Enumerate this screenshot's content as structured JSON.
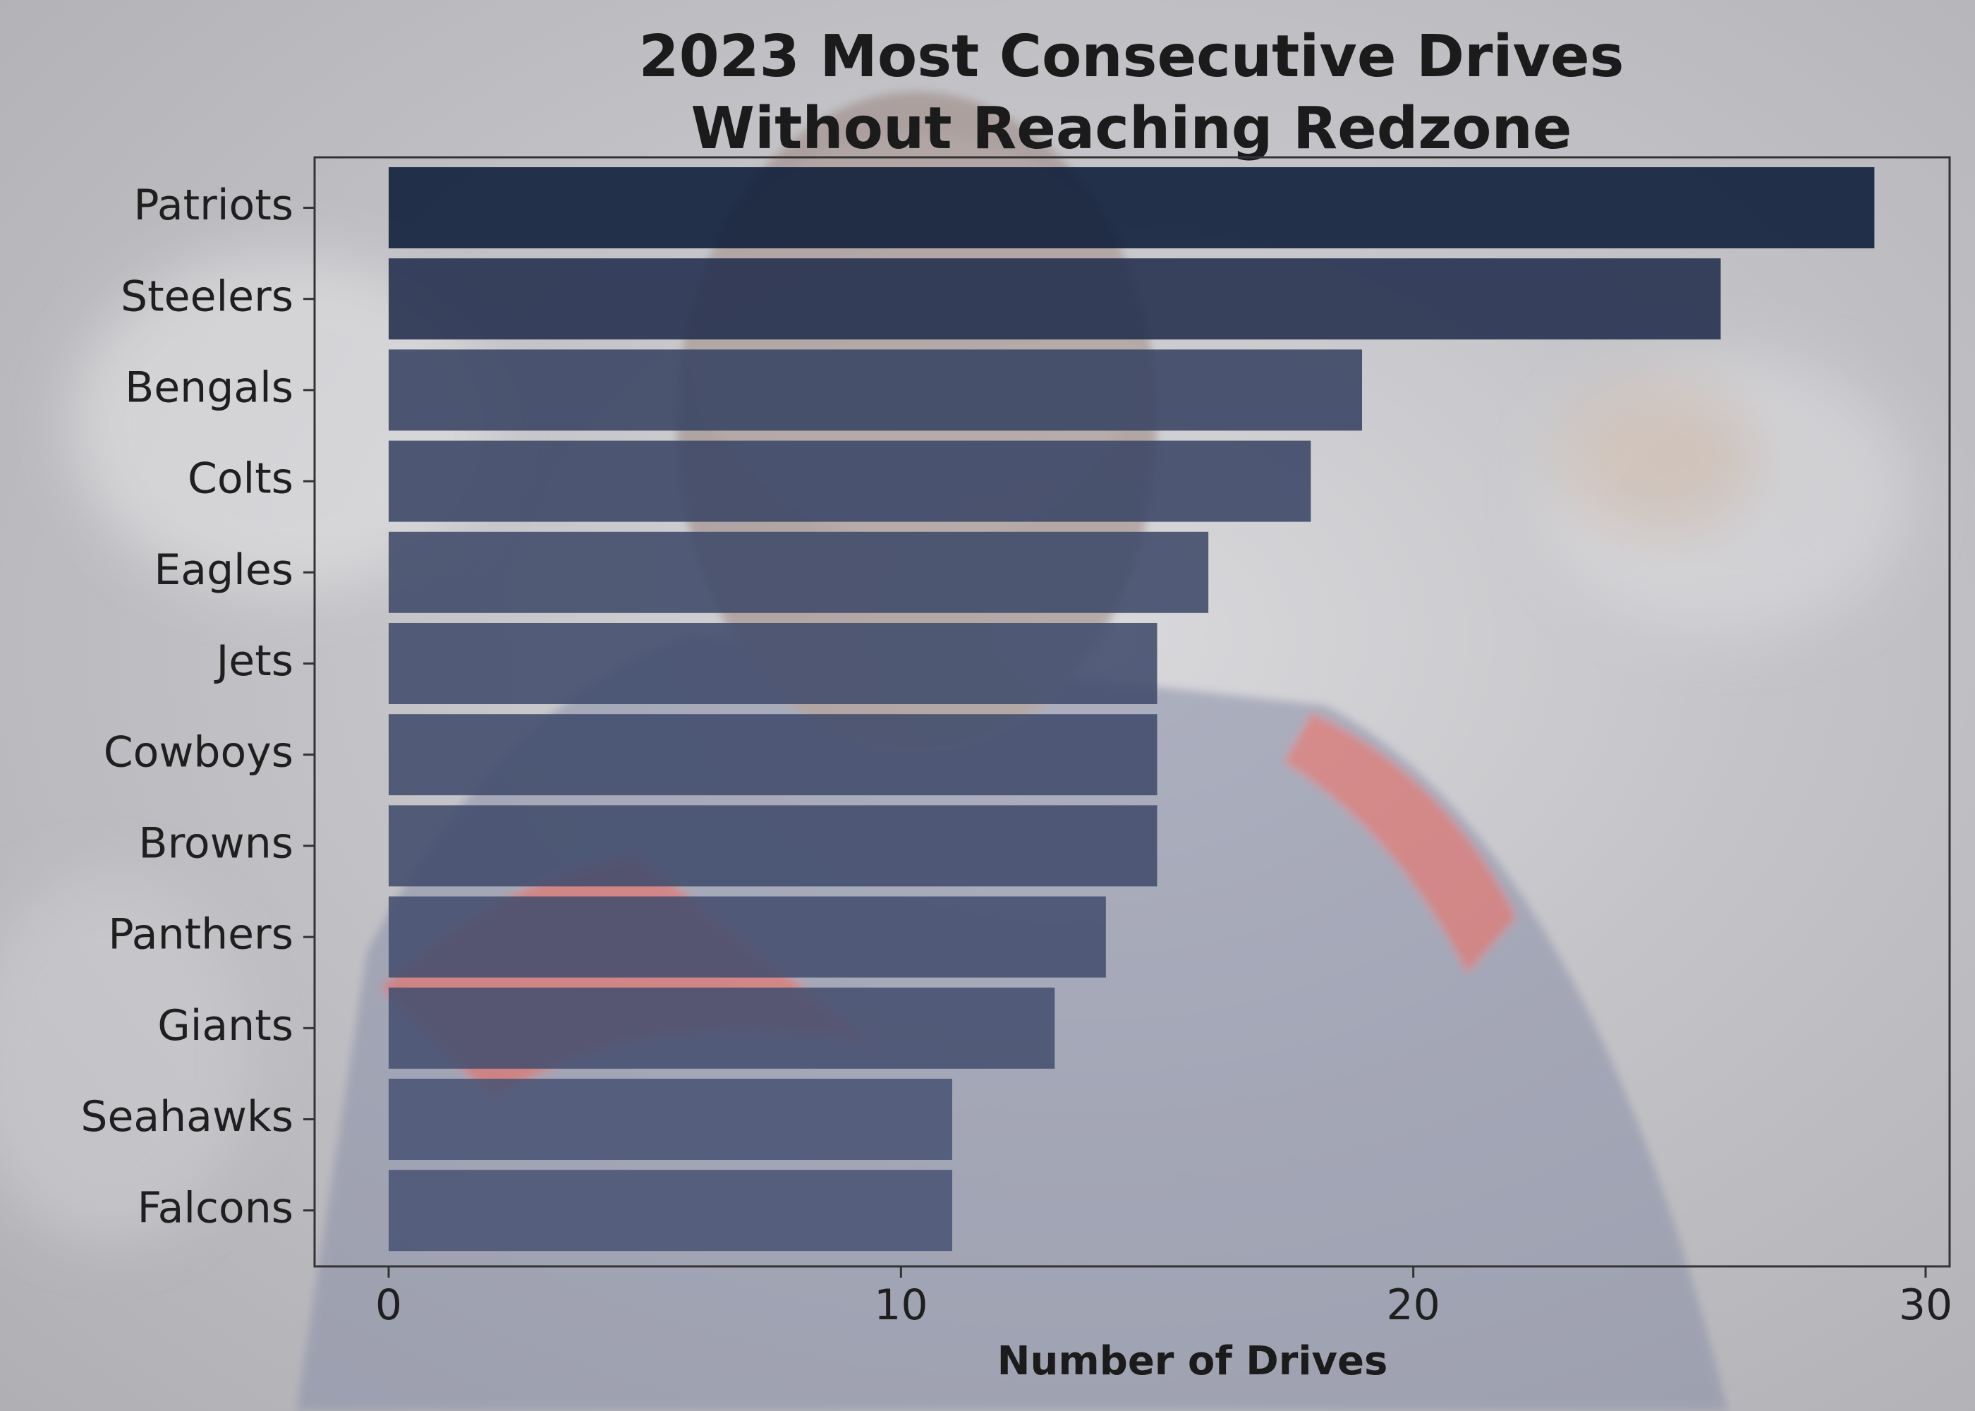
{
  "chart_data": {
    "type": "bar",
    "orientation": "horizontal",
    "title": "2023 Most Consecutive Drives\nWithout Reaching Redzone",
    "xlabel": "Number of Drives",
    "ylabel": "",
    "xlim": [
      0,
      30
    ],
    "xticks": [
      0,
      10,
      20,
      30
    ],
    "grid": false,
    "legend": "none",
    "categories": [
      "Patriots",
      "Steelers",
      "Bengals",
      "Colts",
      "Eagles",
      "Jets",
      "Cowboys",
      "Browns",
      "Panthers",
      "Giants",
      "Seahawks",
      "Falcons"
    ],
    "values": [
      29,
      26,
      19,
      18,
      16,
      15,
      15,
      15,
      14,
      13,
      11,
      11
    ],
    "colors": {
      "bar_max": "#0d1b38",
      "bar_min": "#4a5474",
      "axes_frame": "#333333",
      "text": "#1b1b1b"
    }
  }
}
